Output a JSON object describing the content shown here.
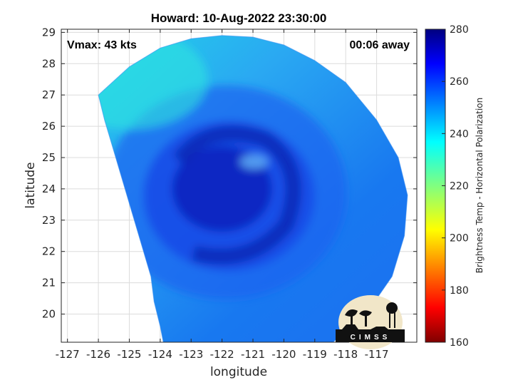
{
  "chart_data": {
    "type": "heatmap",
    "title": "Howard: 10-Aug-2022 23:30:00",
    "xlabel": "longitude",
    "ylabel": "latitude",
    "xlim": [
      -127.2,
      -115.7
    ],
    "ylim": [
      19.1,
      29.1
    ],
    "xticks": [
      -127,
      -126,
      -125,
      -124,
      -123,
      -122,
      -121,
      -120,
      -119,
      -118,
      -117
    ],
    "yticks": [
      20,
      21,
      22,
      23,
      24,
      25,
      26,
      27,
      28,
      29
    ],
    "grid": true,
    "colorbar": {
      "label": "Brightness Temp - Horizontal Polarization",
      "min": 160,
      "max": 280,
      "ticks": [
        160,
        180,
        200,
        220,
        240,
        260,
        280
      ],
      "colormap": "jet"
    },
    "field": {
      "description_center_lon": -122.0,
      "description_center_lat": 24.0,
      "swath_boundary_lonlat": [
        [
          -126.0,
          27.0
        ],
        [
          -125.0,
          27.9
        ],
        [
          -124.0,
          28.5
        ],
        [
          -123.0,
          28.8
        ],
        [
          -122.0,
          28.9
        ],
        [
          -121.0,
          28.85
        ],
        [
          -120.0,
          28.6
        ],
        [
          -119.0,
          28.1
        ],
        [
          -118.0,
          27.4
        ],
        [
          -117.0,
          26.2
        ],
        [
          -116.3,
          25.0
        ],
        [
          -116.0,
          23.8
        ],
        [
          -116.1,
          22.5
        ],
        [
          -116.5,
          21.2
        ],
        [
          -117.2,
          20.2
        ],
        [
          -118.0,
          19.5
        ],
        [
          -118.4,
          19.1
        ],
        [
          -123.9,
          19.1
        ],
        [
          -124.0,
          19.6
        ],
        [
          -124.2,
          20.4
        ],
        [
          -124.3,
          21.2
        ],
        [
          -124.6,
          22.2
        ],
        [
          -124.9,
          23.2
        ],
        [
          -125.2,
          24.2
        ],
        [
          -125.5,
          25.2
        ],
        [
          -125.8,
          26.2
        ],
        [
          -126.0,
          27.0
        ]
      ],
      "eye_temp_k": 262,
      "outer_temp_k": 235
    },
    "annotations": {
      "vmax": "Vmax: 43 kts",
      "time_offset": "00:06 away"
    },
    "logo_text": "CIMSS"
  }
}
